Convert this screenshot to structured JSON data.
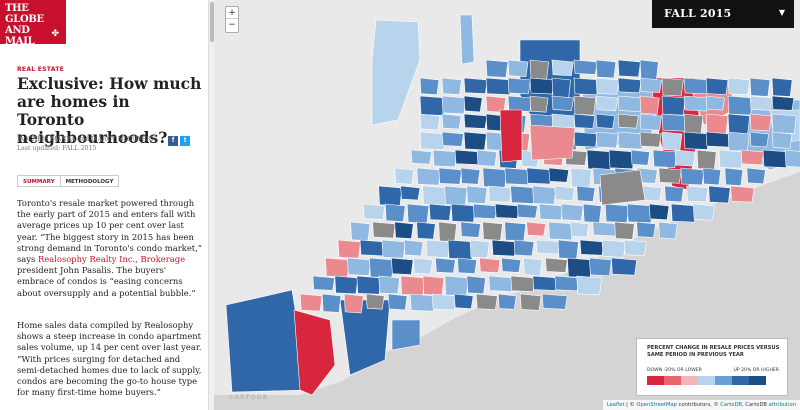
{
  "logo": {
    "line1": "THE",
    "line2": "GLOBE",
    "line3": "AND",
    "line4": "MAIL"
  },
  "article": {
    "kicker": "REAL ESTATE",
    "headline": "Exclusive: How much are homes in Toronto neighbourhoods?",
    "byline": "By CHRIS MANZA and D'ARCY McGOVERN",
    "updated": "Last updated: FALL 2015",
    "share_facebook": "f",
    "share_twitter": "t"
  },
  "tabs": [
    {
      "label": "SUMMARY",
      "active": true
    },
    {
      "label": "METHODOLOGY",
      "active": false
    }
  ],
  "body": {
    "p1_before": "Toronto's resale market powered through the early part of 2015 and enters fall with average prices up 10 per cent over last year. “The biggest story in 2015 has been strong demand in Toronto's condo market,” says ",
    "p1_link": "Realosophy Realty Inc., Brokerage",
    "p1_after": " president John Pasalis. The buyers' embrace of condos is “easing concerns about oversupply and a potential bubble.”",
    "p2": "Home sales data compiled by Realosophy shows a steep increase in condo apartment sales volume, up 14 per cent over last year. “With prices surging for detached and semi-detached homes due to lack of supply, condos are becoming the go-to house type for many first-time home buyers.”"
  },
  "map": {
    "zoom_in": "+",
    "zoom_out": "−",
    "season": "FALL 2015",
    "season_caret": "▼",
    "watermark": "CARTODB",
    "colors": {
      "lake": "#d4d4d4",
      "land": "#e9e9e9",
      "red": "#d7263d",
      "pink": "#ea8a8f",
      "lightpink": "#f4b6b8",
      "paleblue": "#b8d3ec",
      "lightblue": "#8fb9e0",
      "midblue": "#5a8fc9",
      "darkblue": "#2f67a8",
      "navy": "#1d4d85",
      "nodata": "#8a8a8a"
    }
  },
  "legend": {
    "title": "PERCENT CHANGE IN RESALE PRICES VERSUS SAME PERIOD IN PREVIOUS YEAR",
    "low_label": "DOWN -20% OR LOWER",
    "high_label": "UP 20% OR HIGHER",
    "swatches": [
      "#d7263d",
      "#e8636c",
      "#f4b6b8",
      "#b8d3ec",
      "#6e9fd3",
      "#2f67a8",
      "#1d4d85"
    ]
  },
  "attribution": {
    "leaflet": "Leaflet",
    "sep1": " | © ",
    "osm": "OpenStreetMap",
    "contrib": " contributors, © ",
    "carto": "CartoDB",
    "sep2": ", CartoDB ",
    "attr": "attribution"
  }
}
